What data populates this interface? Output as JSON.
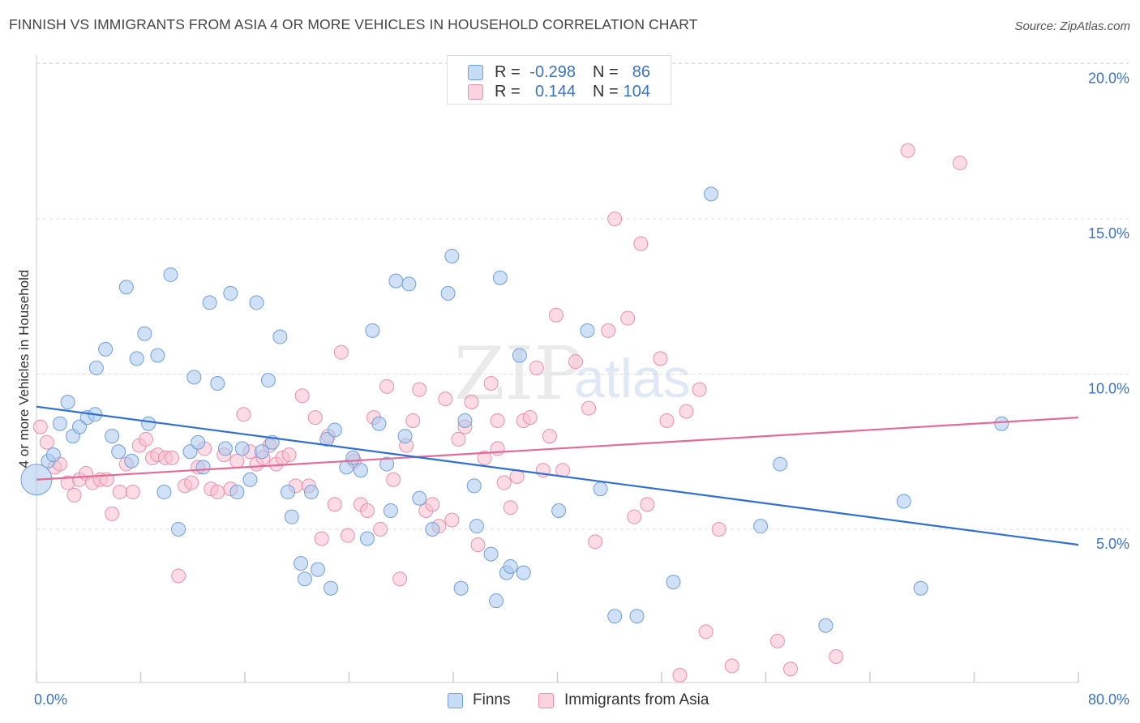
{
  "title": "FINNISH VS IMMIGRANTS FROM ASIA 4 OR MORE VEHICLES IN HOUSEHOLD CORRELATION CHART",
  "source": "Source: ZipAtlas.com",
  "watermark": {
    "zip": "ZIP",
    "atlas": "atlas"
  },
  "colors": {
    "finns_fill": "#aac8ef",
    "finns_stroke": "#6f9fdc",
    "finns_line": "#2f6fd0",
    "asia_fill": "#f7bfd0",
    "asia_stroke": "#ea8fad",
    "asia_line": "#e46b96",
    "tick_label": "#3a72c9",
    "grid": "#dddddd"
  },
  "legend": {
    "finns": {
      "r_label": "R =",
      "r_value": "-0.298",
      "n_label": "N =",
      "n_value": "86"
    },
    "asia": {
      "r_label": "R =",
      "r_value": "0.144",
      "n_label": "N =",
      "n_value": "104"
    }
  },
  "chart_data": {
    "type": "scatter",
    "title": "FINNISH VS IMMIGRANTS FROM ASIA 4 OR MORE VEHICLES IN HOUSEHOLD CORRELATION CHART",
    "xlabel": "",
    "ylabel": "4 or more Vehicles in Household",
    "xlim": [
      0,
      80
    ],
    "ylim": [
      0,
      21
    ],
    "x_tick_labels": [
      "0.0%",
      "80.0%"
    ],
    "y_ticks": [
      5,
      10,
      15,
      20
    ],
    "y_tick_labels": [
      "5.0%",
      "10.0%",
      "15.0%",
      "20.0%"
    ],
    "grid": true,
    "legend_position": "top-center",
    "series": [
      {
        "name": "Finns",
        "color": "#aac8ef",
        "trend": {
          "x": [
            0,
            80
          ],
          "y": [
            8.95,
            4.5
          ]
        },
        "points": [
          [
            0,
            6.6
          ],
          [
            0.9,
            7.2
          ],
          [
            1.3,
            7.4
          ],
          [
            1.8,
            8.4
          ],
          [
            2.4,
            9.1
          ],
          [
            2.8,
            8.0
          ],
          [
            3.3,
            8.3
          ],
          [
            3.9,
            8.6
          ],
          [
            4.5,
            8.7
          ],
          [
            4.6,
            10.2
          ],
          [
            5.3,
            10.8
          ],
          [
            5.8,
            8.0
          ],
          [
            6.3,
            7.5
          ],
          [
            6.9,
            12.8
          ],
          [
            7.3,
            7.2
          ],
          [
            7.7,
            10.5
          ],
          [
            8.3,
            11.3
          ],
          [
            8.6,
            8.4
          ],
          [
            9.3,
            10.6
          ],
          [
            9.8,
            6.2
          ],
          [
            10.3,
            13.2
          ],
          [
            10.9,
            5.0
          ],
          [
            11.8,
            7.5
          ],
          [
            12.1,
            9.9
          ],
          [
            12.4,
            7.8
          ],
          [
            12.8,
            7.0
          ],
          [
            13.3,
            12.3
          ],
          [
            13.9,
            9.7
          ],
          [
            14.5,
            7.6
          ],
          [
            14.9,
            12.6
          ],
          [
            15.4,
            6.2
          ],
          [
            15.8,
            7.6
          ],
          [
            16.4,
            6.6
          ],
          [
            16.9,
            12.3
          ],
          [
            17.3,
            7.5
          ],
          [
            17.8,
            9.8
          ],
          [
            18.1,
            7.8
          ],
          [
            18.7,
            11.2
          ],
          [
            19.3,
            6.2
          ],
          [
            19.6,
            5.4
          ],
          [
            20.3,
            3.9
          ],
          [
            20.6,
            3.4
          ],
          [
            21.1,
            6.2
          ],
          [
            21.6,
            3.7
          ],
          [
            22.3,
            7.9
          ],
          [
            22.6,
            3.1
          ],
          [
            22.9,
            8.2
          ],
          [
            23.8,
            7.0
          ],
          [
            24.3,
            7.3
          ],
          [
            24.9,
            6.9
          ],
          [
            25.4,
            4.7
          ],
          [
            25.8,
            11.4
          ],
          [
            26.3,
            8.4
          ],
          [
            26.9,
            7.1
          ],
          [
            27.2,
            5.6
          ],
          [
            27.6,
            13.0
          ],
          [
            28.3,
            8.0
          ],
          [
            28.6,
            12.9
          ],
          [
            29.4,
            6.0
          ],
          [
            30.4,
            5.0
          ],
          [
            31.6,
            12.6
          ],
          [
            31.9,
            13.8
          ],
          [
            32.6,
            3.1
          ],
          [
            32.9,
            8.5
          ],
          [
            33.6,
            6.4
          ],
          [
            33.8,
            5.1
          ],
          [
            34.9,
            4.2
          ],
          [
            35.3,
            2.7
          ],
          [
            35.6,
            13.1
          ],
          [
            36.1,
            3.6
          ],
          [
            36.4,
            3.8
          ],
          [
            37.1,
            10.6
          ],
          [
            37.4,
            3.6
          ],
          [
            40.1,
            5.6
          ],
          [
            42.3,
            11.4
          ],
          [
            43.3,
            6.3
          ],
          [
            44.4,
            2.2
          ],
          [
            46.1,
            2.2
          ],
          [
            48.9,
            3.3
          ],
          [
            51.8,
            15.8
          ],
          [
            55.6,
            5.1
          ],
          [
            57.1,
            7.1
          ],
          [
            60.6,
            1.9
          ],
          [
            66.6,
            5.9
          ],
          [
            67.9,
            3.1
          ],
          [
            74.1,
            8.4
          ]
        ]
      },
      {
        "name": "Immigrants from Asia",
        "color": "#f7bfd0",
        "trend": {
          "x": [
            0,
            80
          ],
          "y": [
            6.6,
            8.6
          ]
        },
        "points": [
          [
            0.3,
            8.3
          ],
          [
            0.8,
            7.8
          ],
          [
            1.4,
            7.0
          ],
          [
            1.8,
            7.1
          ],
          [
            2.4,
            6.5
          ],
          [
            2.9,
            6.1
          ],
          [
            3.3,
            6.6
          ],
          [
            3.8,
            6.8
          ],
          [
            4.3,
            6.5
          ],
          [
            4.9,
            6.6
          ],
          [
            5.4,
            6.6
          ],
          [
            5.8,
            5.5
          ],
          [
            6.4,
            6.2
          ],
          [
            6.9,
            7.1
          ],
          [
            7.4,
            6.2
          ],
          [
            7.9,
            7.7
          ],
          [
            8.4,
            7.9
          ],
          [
            8.9,
            7.3
          ],
          [
            9.3,
            7.4
          ],
          [
            9.9,
            7.3
          ],
          [
            10.4,
            7.3
          ],
          [
            10.9,
            3.5
          ],
          [
            11.4,
            6.4
          ],
          [
            11.9,
            6.5
          ],
          [
            12.4,
            7.0
          ],
          [
            12.9,
            7.6
          ],
          [
            13.4,
            6.3
          ],
          [
            13.9,
            6.2
          ],
          [
            14.4,
            7.4
          ],
          [
            14.9,
            6.3
          ],
          [
            15.4,
            7.2
          ],
          [
            15.9,
            8.7
          ],
          [
            16.4,
            7.5
          ],
          [
            16.9,
            7.1
          ],
          [
            17.4,
            7.3
          ],
          [
            17.9,
            7.7
          ],
          [
            18.4,
            7.1
          ],
          [
            18.9,
            7.3
          ],
          [
            19.4,
            7.4
          ],
          [
            19.9,
            6.4
          ],
          [
            20.4,
            9.3
          ],
          [
            20.9,
            6.4
          ],
          [
            21.4,
            8.6
          ],
          [
            21.9,
            4.7
          ],
          [
            22.4,
            8.0
          ],
          [
            22.9,
            5.8
          ],
          [
            23.4,
            10.7
          ],
          [
            23.9,
            4.8
          ],
          [
            24.4,
            7.2
          ],
          [
            24.9,
            5.8
          ],
          [
            25.4,
            5.6
          ],
          [
            25.9,
            8.6
          ],
          [
            26.4,
            5.0
          ],
          [
            26.9,
            9.6
          ],
          [
            27.4,
            6.6
          ],
          [
            27.9,
            3.4
          ],
          [
            28.4,
            7.7
          ],
          [
            28.9,
            8.5
          ],
          [
            29.4,
            9.5
          ],
          [
            29.9,
            5.6
          ],
          [
            30.4,
            5.8
          ],
          [
            30.9,
            5.1
          ],
          [
            31.4,
            9.2
          ],
          [
            31.9,
            5.3
          ],
          [
            32.4,
            7.9
          ],
          [
            32.9,
            8.3
          ],
          [
            33.4,
            9.1
          ],
          [
            33.9,
            4.5
          ],
          [
            34.4,
            7.3
          ],
          [
            34.9,
            9.7
          ],
          [
            35.4,
            7.6
          ],
          [
            35.9,
            6.5
          ],
          [
            36.4,
            5.7
          ],
          [
            36.9,
            6.7
          ],
          [
            37.4,
            8.5
          ],
          [
            37.9,
            8.6
          ],
          [
            38.4,
            10.2
          ],
          [
            38.9,
            6.9
          ],
          [
            39.4,
            8.0
          ],
          [
            39.9,
            11.9
          ],
          [
            40.4,
            6.9
          ],
          [
            41.4,
            10.4
          ],
          [
            42.4,
            8.9
          ],
          [
            42.9,
            4.6
          ],
          [
            43.9,
            11.4
          ],
          [
            44.4,
            15.0
          ],
          [
            45.4,
            11.8
          ],
          [
            45.9,
            5.4
          ],
          [
            46.4,
            14.2
          ],
          [
            46.9,
            5.8
          ],
          [
            47.9,
            10.5
          ],
          [
            48.4,
            8.5
          ],
          [
            49.4,
            0.3
          ],
          [
            49.9,
            8.8
          ],
          [
            50.9,
            9.5
          ],
          [
            51.4,
            1.7
          ],
          [
            52.4,
            5.0
          ],
          [
            53.4,
            0.6
          ],
          [
            56.9,
            1.4
          ],
          [
            57.9,
            0.5
          ],
          [
            61.4,
            0.9
          ],
          [
            66.9,
            17.2
          ],
          [
            70.9,
            16.8
          ],
          [
            35.4,
            8.5
          ]
        ]
      }
    ]
  },
  "bottom_legend": {
    "finns": "Finns",
    "asia": "Immigrants from Asia"
  }
}
